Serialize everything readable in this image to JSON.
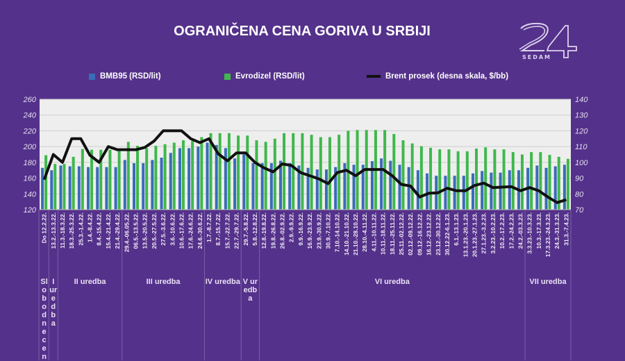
{
  "title": "OGRANIČENA CENA GORIVA U SRBIJI",
  "logo": {
    "text": "24",
    "subtext": "SEDAM"
  },
  "legend": [
    {
      "label": "BMB95 (RSD/lit)",
      "color": "#3a6cb8"
    },
    {
      "label": "Evrodizel (RSD/lit)",
      "color": "#3fb84b"
    },
    {
      "label": "Brent prosek  (desna skala, $/bb)",
      "color": "#111111"
    }
  ],
  "chart_data": {
    "type": "bar+line",
    "title": "OGRANIČENA CENA GORIVA U SRBIJI",
    "y_left": {
      "range": [
        120,
        260
      ],
      "ticks": [
        "120",
        "140",
        "160",
        "180",
        "200",
        "220",
        "240",
        "260"
      ]
    },
    "y_right": {
      "range": [
        70,
        140
      ],
      "ticks": [
        "70",
        "80",
        "90",
        "100",
        "110",
        "120",
        "130",
        "140"
      ]
    },
    "grid": true,
    "legend_position": "top",
    "categories": [
      "Do 12.2.22.",
      "13.2.-13.3.22.",
      "11.3.-18.3.22.",
      "18.3.-25.3.22.",
      "25.3.-1.4.22.",
      "1.4.-8.4.22.",
      "8.4.-15.4.22.",
      "15.4.-21.4.22.",
      "21.4.-29.4.22.",
      "29.4.-06.05.22.",
      "06.5.-13.5.22.",
      "13.5.-20.5.22.",
      "20.5.-27.5.22.",
      "27.5.-3.6.22.",
      "3.6.-10.6.22.",
      "10.6.-17.6.22.",
      "17.6.-24.6.22.",
      "24.6.-30.6.22.",
      "1.7.-8.7.22.",
      "8.7.-15.7.22.",
      "15.7.-22.7.22.",
      "22.7.-29.7.22.",
      "29.7.-5.8.22.",
      "5.8.-12.8.22.",
      "12.8.-19.8.22.",
      "19.8.-26.8.22.",
      "26.8.-02.9.22.",
      "2.9.-9.9.22.",
      "9.9.-16.9.22.",
      "16.9.-23.9.22.",
      "23.9.-30.9.22.",
      "30.9.-7.10.22.",
      "7.10.-14.10.22.",
      "14.10.-21.10.22.",
      "21.10.-28.10.22.",
      "28.10.-4.11.22.",
      "4.11.-10.11.22.",
      "10.11.-18.11.22.",
      "18.11.-25.11.22.",
      "25.11.-02.12.22.",
      "02.12.-09.12.22.",
      "09.12.-16.12.22.",
      "16.12.-23.12.22.",
      "23.12.-30.12.22.",
      "30.12.22-6.1.23.",
      "6.1.-13.1.23.",
      "13.1.23.-20.1.23.",
      "20.1.23.-27.1.23.",
      "27.1.23.-3.2.23.",
      "3.2.23.-10.2.23.",
      "10.2.-17.2.23.",
      "17.2.-24.2.23.",
      "24.2.-03.3.23.",
      "3.3.23.-10.3.23.",
      "10.3.-17.3.23.",
      "17.3.23.-24.3.23.",
      "24.3.-31.3.23.",
      "31.3.-7.4.23."
    ],
    "series": [
      {
        "name": "BMB95 (RSD/lit)",
        "axis": "left",
        "type": "bar",
        "color": "#3a6cb8",
        "values": [
          173,
          170,
          176,
          175,
          175,
          174,
          174,
          174,
          174,
          183,
          179,
          179,
          183,
          186,
          192,
          198,
          198,
          200,
          205,
          202,
          198,
          185,
          190,
          179,
          179,
          179,
          182,
          179,
          176,
          173,
          171,
          171,
          174,
          179,
          177,
          177,
          181.5,
          185,
          182,
          177,
          174,
          170,
          166,
          163,
          163,
          163,
          163,
          166,
          169,
          167,
          167,
          170,
          170,
          173,
          176,
          173,
          175,
          177
        ]
      },
      {
        "name": "Evrodizel (RSD/lit)",
        "axis": "left",
        "type": "bar",
        "color": "#3fb84b",
        "values": [
          189,
          178,
          178,
          187,
          197,
          196,
          196,
          196,
          196,
          206,
          201,
          198,
          201,
          203,
          205,
          208,
          207,
          212,
          217,
          217,
          217,
          214,
          214,
          208,
          206,
          210,
          217,
          217,
          217,
          215,
          212,
          212,
          215,
          220,
          221,
          221,
          221,
          221,
          216,
          208,
          204,
          200.5,
          198.5,
          196.5,
          196.5,
          194,
          194,
          197.5,
          199,
          196.5,
          196.5,
          193,
          190,
          193,
          193,
          189.5,
          187,
          184.5
        ]
      },
      {
        "name": "Brent prosek  (desna skala, $/bb)",
        "axis": "right",
        "type": "line",
        "color": "#111111",
        "values": [
          89,
          105,
          100,
          115,
          115,
          104.5,
          100,
          110,
          108,
          108,
          108,
          109.5,
          113.5,
          120,
          120,
          120,
          115,
          112.5,
          115,
          105.5,
          101,
          106,
          106,
          100,
          96.5,
          94,
          99,
          98,
          93.5,
          91.5,
          89.5,
          86.5,
          93.5,
          95,
          91.5,
          95.5,
          95.5,
          95.5,
          91.5,
          86,
          85,
          78,
          80.4,
          80.7,
          83.6,
          82,
          82,
          85.4,
          86.8,
          84,
          84.3,
          84.6,
          82,
          84,
          82,
          78,
          74.5,
          76.3
        ]
      }
    ],
    "groups": [
      {
        "label": "Slobodne cen",
        "span": 1
      },
      {
        "label": "I uredba",
        "span": 1
      },
      {
        "label": "II uredba",
        "span": 7
      },
      {
        "label": "III uredba",
        "span": 9
      },
      {
        "label": "IV uredba",
        "span": 4
      },
      {
        "label": "V uredba",
        "span": 2
      },
      {
        "label": "VI uredba",
        "span": 29
      },
      {
        "label": "VII uredba",
        "span": 5
      }
    ]
  }
}
